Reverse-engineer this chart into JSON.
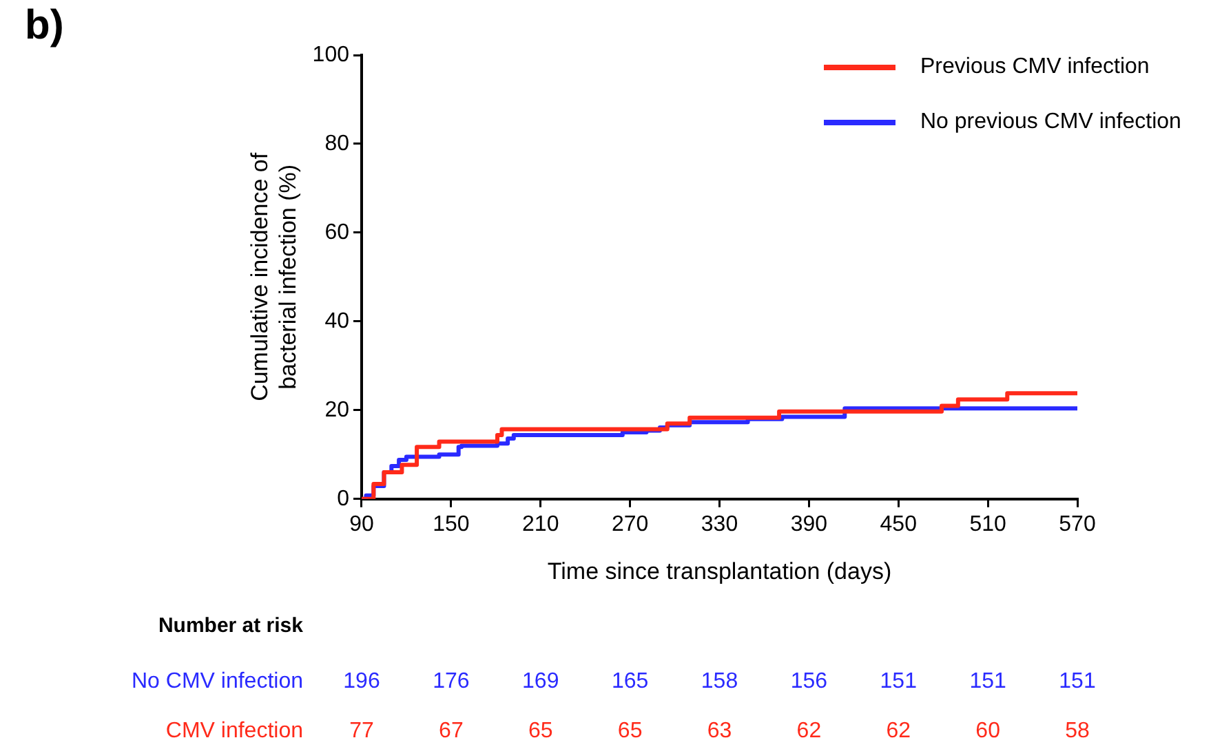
{
  "chart_data": {
    "type": "step",
    "title": "b)",
    "xlabel": "Time since transplantation (days)",
    "ylabel": "Cumulative incidence of bacterial infection (%)",
    "xlim": [
      90,
      570
    ],
    "xticks": [
      90,
      150,
      210,
      270,
      330,
      390,
      450,
      510,
      570
    ],
    "ylim": [
      0,
      100
    ],
    "yticks": [
      0,
      20,
      40,
      60,
      80,
      100
    ],
    "grid": false,
    "legend": "top right",
    "marker": "none",
    "line_style": "solid",
    "series": [
      {
        "name": "Previous CMV infection",
        "color": "#ff2a1a",
        "x": [
          90,
          98,
          105,
          117,
          127,
          142,
          181,
          184,
          295,
          310,
          370,
          479,
          490,
          523,
          570
        ],
        "values": [
          0,
          3.4,
          6,
          7.7,
          11.7,
          12.9,
          14.4,
          15.7,
          17,
          18.3,
          19.7,
          21,
          22.4,
          23.8,
          23.8
        ]
      },
      {
        "name": "No previous CMV infection",
        "color": "#2a2aff",
        "x": [
          90,
          93,
          98,
          105,
          110,
          115,
          120,
          142,
          155,
          157,
          181,
          188,
          192,
          265,
          281,
          290,
          295,
          310,
          349,
          372,
          414,
          570
        ],
        "values": [
          0,
          0.8,
          2.9,
          6,
          7.4,
          8.8,
          9.5,
          10,
          11.7,
          12,
          12.5,
          13.6,
          14.4,
          15,
          15.4,
          16.1,
          16.6,
          17.3,
          18,
          18.5,
          20.4,
          20.4
        ]
      }
    ],
    "annotations": [
      "Number at risk",
      "No CMV infection",
      "196",
      "176",
      "169",
      "165",
      "158",
      "156",
      "151",
      "151",
      "151",
      "CMV infection",
      "77",
      "67",
      "65",
      "65",
      "63",
      "62",
      "62",
      "60",
      "58"
    ]
  }
}
